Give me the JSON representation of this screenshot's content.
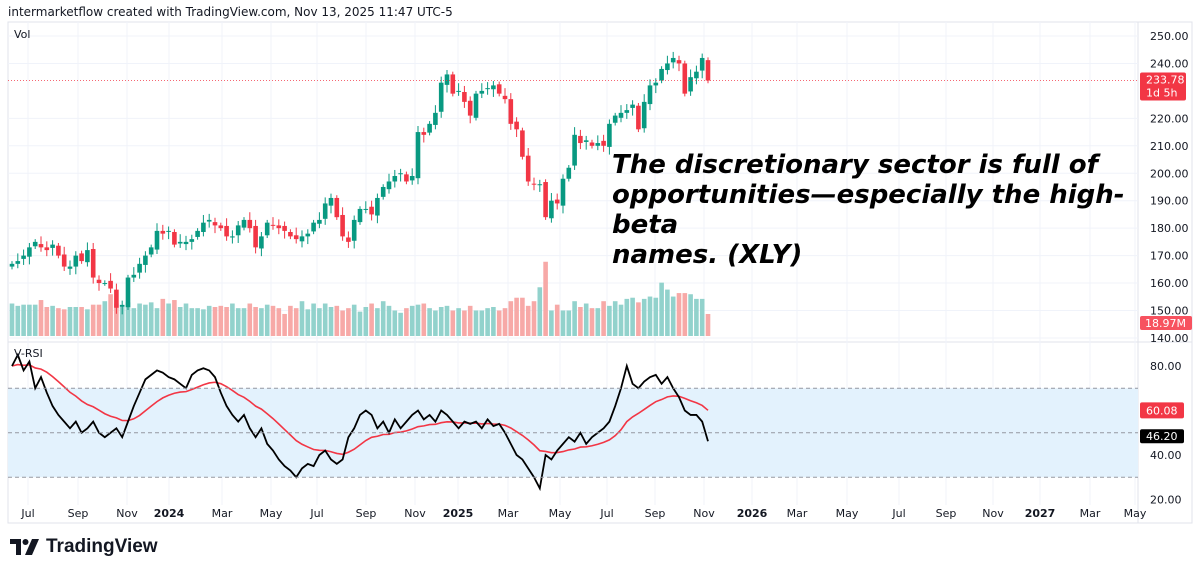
{
  "header": {
    "attribution": "intermarketflow created with TradingView.com, Nov 13, 2025 11:47 UTC-5"
  },
  "annotation": {
    "line1": "The discretionary sector is full of",
    "line2": "opportunities—especially the high-beta",
    "line3": "names. (XLY)"
  },
  "logo": {
    "text": "TradingView"
  },
  "colors": {
    "up": "#089981",
    "down": "#f23645",
    "up_volume": "#92d2cc",
    "down_volume": "#f7a9a7",
    "rsi_line": "#000000",
    "rsi_ma": "#f23645",
    "rsi_band": "#e3f2fd"
  },
  "chart_data": [
    {
      "type": "candlestick",
      "title": "",
      "volume_label": "Vol",
      "interval": "weekly",
      "y_ticks": [
        "250.00",
        "240.00",
        "220.00",
        "210.00",
        "200.00",
        "190.00",
        "180.00",
        "170.00",
        "160.00",
        "150.00",
        "140.00"
      ],
      "ylim": [
        140,
        250
      ],
      "last_price": {
        "value": "233.78",
        "countdown": "1d 5h"
      },
      "last_volume": "18.97M",
      "closes": [
        167,
        168,
        170,
        173,
        175,
        173,
        172,
        174,
        170,
        166,
        166,
        170,
        168,
        172,
        162,
        160,
        160,
        158,
        151,
        152,
        162,
        163,
        167,
        170,
        173,
        179,
        178,
        179,
        174,
        175,
        175,
        176,
        179,
        182,
        183,
        181,
        180,
        177,
        177,
        181,
        183,
        180,
        173,
        177,
        182,
        181,
        180,
        179,
        177,
        176,
        177,
        178,
        182,
        183,
        189,
        191,
        184,
        177,
        175,
        183,
        187,
        187,
        185,
        191,
        195,
        197,
        199,
        200,
        197,
        199,
        215,
        214,
        218,
        222,
        233,
        236,
        229,
        230,
        226,
        221,
        229,
        230,
        231,
        232,
        229,
        227,
        218,
        216,
        206,
        197,
        196,
        196,
        184,
        190,
        189,
        198,
        202,
        214,
        211,
        212,
        210,
        211,
        210,
        218,
        221,
        222,
        223,
        225,
        216,
        226,
        232,
        233,
        238,
        240,
        242,
        240,
        229,
        235,
        237,
        242,
        233.78
      ],
      "volumes_millions": [
        28,
        26,
        27,
        27,
        27,
        31,
        25,
        26,
        24,
        23,
        25,
        25,
        25,
        23,
        27,
        27,
        30,
        36,
        28,
        27,
        29,
        24,
        28,
        27,
        29,
        24,
        32,
        28,
        31,
        25,
        28,
        24,
        24,
        23,
        26,
        25,
        26,
        25,
        28,
        24,
        24,
        28,
        25,
        24,
        27,
        26,
        24,
        19,
        26,
        24,
        30,
        23,
        28,
        24,
        28,
        25,
        26,
        22,
        24,
        27,
        21,
        25,
        28,
        24,
        30,
        26,
        22,
        20,
        24,
        26,
        27,
        28,
        24,
        22,
        25,
        26,
        22,
        24,
        22,
        26,
        22,
        22,
        24,
        25,
        22,
        24,
        30,
        33,
        33,
        26,
        30,
        42,
        64,
        22,
        27,
        22,
        22,
        30,
        25,
        28,
        24,
        24,
        30,
        26,
        30,
        27,
        32,
        33,
        29,
        32,
        34,
        33,
        46,
        40,
        34,
        37,
        37,
        36,
        32,
        32,
        18.97
      ],
      "x_ticks": [
        "Jul",
        "Sep",
        "Nov",
        "2024",
        "Mar",
        "May",
        "Jul",
        "Sep",
        "Nov",
        "2025",
        "Mar",
        "May",
        "Jul",
        "Sep",
        "Nov",
        "2026",
        "Mar",
        "May",
        "Jul",
        "Sep",
        "Nov",
        "2027",
        "Mar",
        "May"
      ]
    },
    {
      "type": "line",
      "title": "V-RSI",
      "y_ticks": [
        "80.00",
        "40.00",
        "20.00"
      ],
      "ylim": [
        20,
        88
      ],
      "band": [
        30,
        70
      ],
      "midline": 50,
      "rsi": [
        80,
        85,
        78,
        82,
        70,
        75,
        68,
        62,
        58,
        55,
        52,
        55,
        50,
        52,
        55,
        50,
        48,
        50,
        52,
        48,
        55,
        62,
        68,
        74,
        76,
        78,
        77,
        75,
        74,
        72,
        70,
        76,
        78,
        79,
        78,
        75,
        68,
        62,
        58,
        55,
        58,
        52,
        48,
        52,
        45,
        42,
        38,
        35,
        33,
        30,
        34,
        36,
        35,
        40,
        42,
        38,
        36,
        38,
        48,
        52,
        58,
        60,
        58,
        52,
        55,
        50,
        56,
        52,
        55,
        58,
        60,
        56,
        58,
        55,
        60,
        58,
        55,
        52,
        55,
        54,
        55,
        52,
        56,
        53,
        54,
        50,
        45,
        40,
        38,
        34,
        30,
        25,
        40,
        38,
        42,
        45,
        48,
        46,
        50,
        45,
        48,
        50,
        52,
        55,
        62,
        70,
        80,
        72,
        70,
        73,
        75,
        76,
        72,
        75,
        70,
        66,
        60,
        58,
        58,
        55,
        46.2
      ],
      "last_rsi": "46.20",
      "last_ma": "60.08"
    }
  ]
}
